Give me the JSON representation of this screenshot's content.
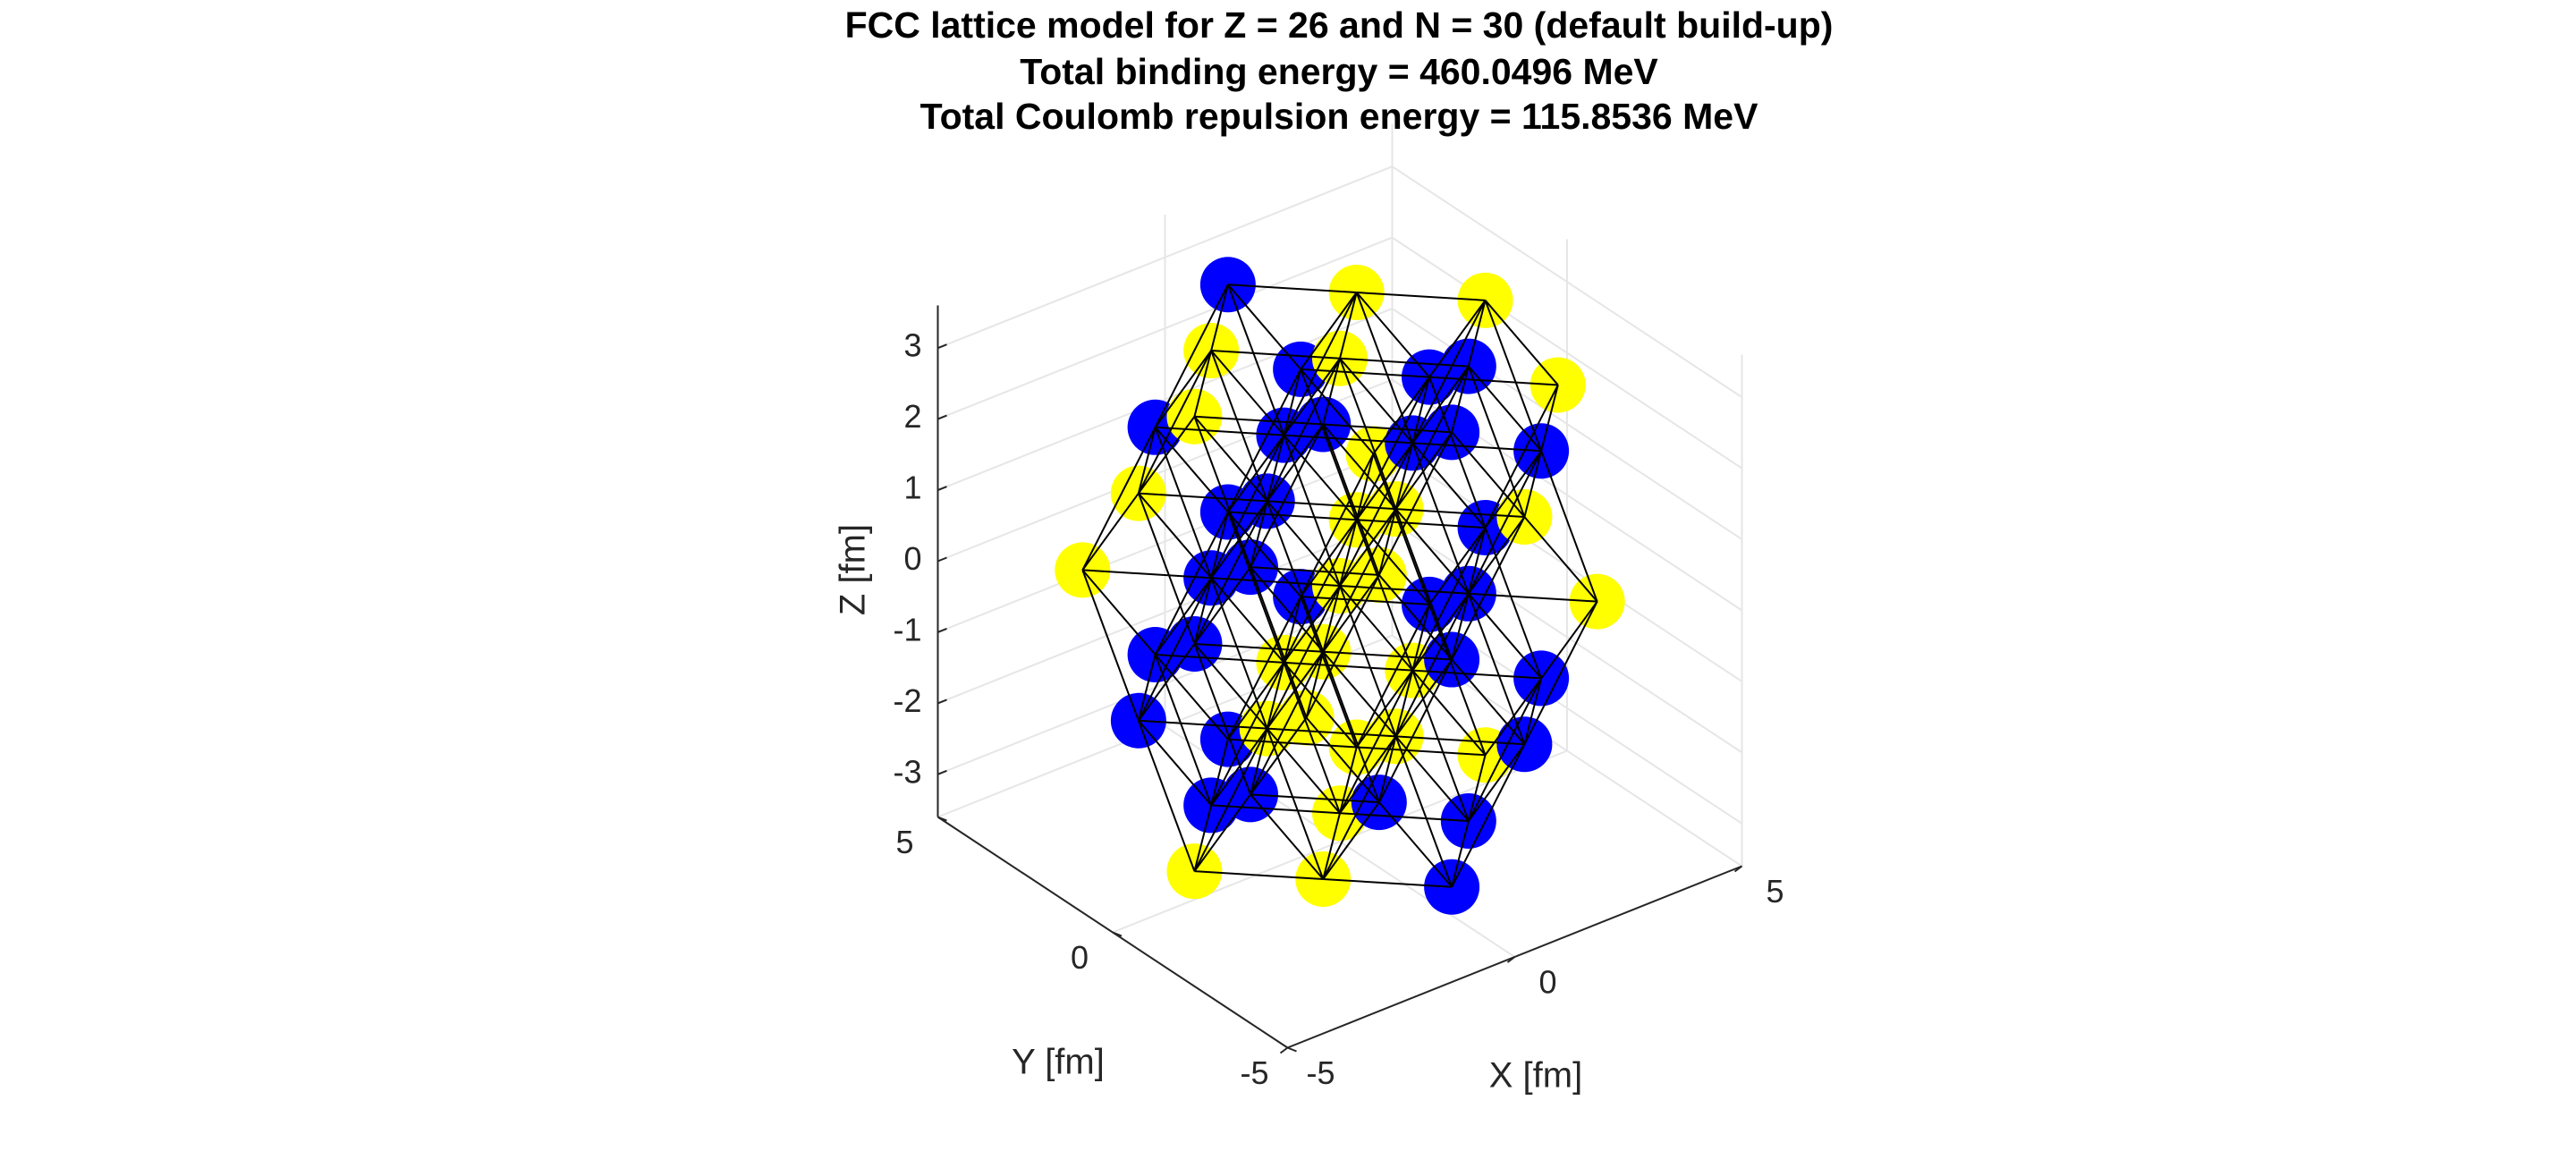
{
  "chart_data": {
    "type": "scatter3d",
    "title": [
      "FCC lattice model for Z = 26 and N = 30 (default build-up)",
      "Total binding energy = 460.0496 MeV",
      "Total Coulomb repulsion energy = 115.8536 MeV"
    ],
    "xlabel": "X [fm]",
    "ylabel": "Y [fm]",
    "zlabel": "Z [fm]",
    "xlim": [
      -5,
      5
    ],
    "ylim": [
      -5,
      5
    ],
    "zlim": [
      -3.6,
      3.6
    ],
    "xticks": [
      -5,
      0,
      5
    ],
    "yticks": [
      -5,
      0,
      5
    ],
    "zticks": [
      -3,
      -2,
      -1,
      0,
      1,
      2,
      3
    ],
    "grid": true,
    "series": [
      {
        "color": "#ffff00",
        "x": [
          -3.2,
          0,
          3.2,
          -1.6,
          1.6,
          0,
          0,
          -1.6,
          1.6,
          -3.2,
          -3.2,
          0,
          3.2,
          3.2,
          -1.6,
          1.6,
          -3.2,
          0,
          -1.6,
          1.6,
          -3.2,
          0,
          3.2,
          -1.6,
          1.6,
          4.8
        ],
        "y": [
          0,
          0,
          0,
          -1.6,
          1.6,
          -1.6,
          1.6,
          0,
          0,
          -3.2,
          3.2,
          0,
          -3.2,
          3.2,
          -1.6,
          1.6,
          1.6,
          -1.6,
          -3.2,
          -3.2,
          0,
          0,
          0,
          1.6,
          1.6,
          0
        ],
        "z": [
          -3.2,
          -3.2,
          -3.2,
          -3.2,
          -3.2,
          -1.6,
          -1.6,
          -1.6,
          -1.6,
          0,
          0,
          0,
          0,
          0,
          0,
          0,
          1.6,
          1.6,
          1.6,
          1.6,
          3.2,
          3.2,
          3.2,
          3.2,
          3.2,
          1.6
        ]
      },
      {
        "color": "#0000ff",
        "x": [
          0,
          0,
          -1.6,
          1.6,
          -3.2,
          -3.2,
          3.2,
          3.2,
          -1.6,
          -1.6,
          1.6,
          1.6,
          -3.2,
          0,
          0,
          3.2,
          -1.6,
          1.6,
          -3.2,
          0,
          3.2,
          3.2,
          -1.6,
          -1.6,
          1.6,
          1.6,
          0,
          0,
          -1.6,
          1.6
        ],
        "y": [
          -3.2,
          3.2,
          1.6,
          -1.6,
          -1.6,
          1.6,
          -1.6,
          1.6,
          -3.2,
          3.2,
          -3.2,
          3.2,
          0,
          -3.2,
          3.2,
          0,
          1.6,
          -1.6,
          -1.6,
          1.6,
          -1.6,
          1.6,
          0,
          3.2,
          0,
          3.2,
          -3.2,
          3.2,
          -1.6,
          -1.6
        ],
        "z": [
          -3.2,
          -3.2,
          -3.2,
          -3.2,
          -1.6,
          -1.6,
          -1.6,
          -1.6,
          -1.6,
          -1.6,
          -1.6,
          -1.6,
          0,
          0,
          0,
          0,
          0,
          0,
          1.6,
          1.6,
          1.6,
          1.6,
          1.6,
          1.6,
          1.6,
          1.6,
          3.2,
          3.2,
          3.2,
          3.2
        ]
      }
    ]
  }
}
